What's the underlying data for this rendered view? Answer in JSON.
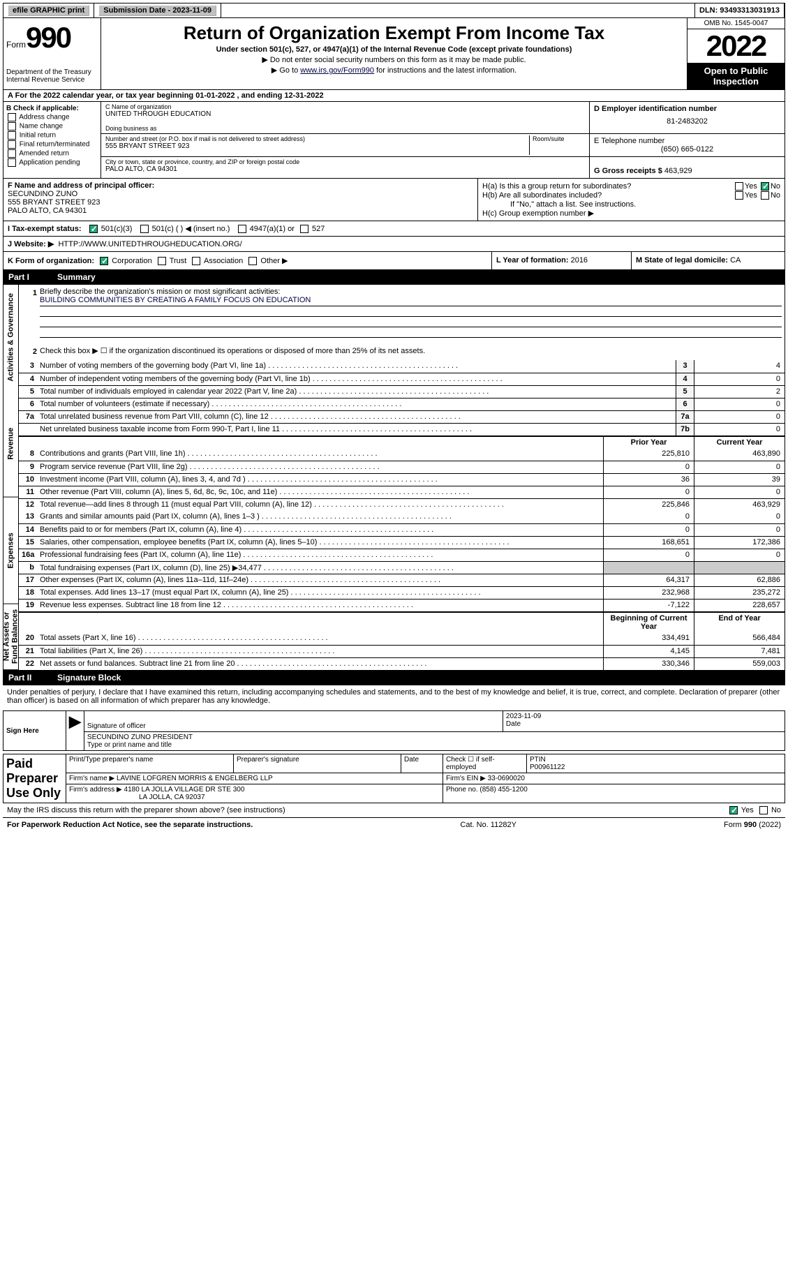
{
  "header": {
    "efile": "efile GRAPHIC print",
    "submission_label": "Submission Date - 2023-11-09",
    "dln": "DLN: 93493313031913"
  },
  "form_head": {
    "form_small": "Form",
    "form_num": "990",
    "title": "Return of Organization Exempt From Income Tax",
    "subtitle": "Under section 501(c), 527, or 4947(a)(1) of the Internal Revenue Code (except private foundations)",
    "note1": "▶ Do not enter social security numbers on this form as it may be made public.",
    "note2_pre": "▶ Go to ",
    "note2_link": "www.irs.gov/Form990",
    "note2_post": " for instructions and the latest information.",
    "dept": "Department of the Treasury",
    "irs": "Internal Revenue Service",
    "omb": "OMB No. 1545-0047",
    "year": "2022",
    "open": "Open to Public Inspection"
  },
  "row_a": "A For the 2022 calendar year, or tax year beginning 01-01-2022   , and ending 12-31-2022",
  "section_b": {
    "header": "B Check if applicable:",
    "items": [
      "Address change",
      "Name change",
      "Initial return",
      "Final return/terminated",
      "Amended return",
      "Application pending"
    ]
  },
  "section_c": {
    "name_lbl": "C Name of organization",
    "name": "UNITED THROUGH EDUCATION",
    "dba_lbl": "Doing business as",
    "addr_lbl": "Number and street (or P.O. box if mail is not delivered to street address)",
    "room_lbl": "Room/suite",
    "addr": "555 BRYANT STREET 923",
    "city_lbl": "City or town, state or province, country, and ZIP or foreign postal code",
    "city": "PALO ALTO, CA  94301"
  },
  "section_d": {
    "ein_lbl": "D Employer identification number",
    "ein": "81-2483202",
    "tel_lbl": "E Telephone number",
    "tel": "(650) 665-0122",
    "gross_lbl": "G Gross receipts $",
    "gross": "463,929"
  },
  "section_f": {
    "lbl": "F Name and address of principal officer:",
    "name": "SECUNDINO ZUNO",
    "addr1": "555 BRYANT STREET 923",
    "addr2": "PALO ALTO, CA  94301"
  },
  "section_h": {
    "ha": "H(a)  Is this a group return for subordinates?",
    "hb": "H(b)  Are all subordinates included?",
    "hb_note": "If \"No,\" attach a list. See instructions.",
    "hc": "H(c)  Group exemption number ▶",
    "yes": "Yes",
    "no": "No"
  },
  "row_i": {
    "lbl": "I   Tax-exempt status:",
    "o1": "501(c)(3)",
    "o2": "501(c) (  ) ◀ (insert no.)",
    "o3": "4947(a)(1) or",
    "o4": "527"
  },
  "row_j": {
    "lbl": "J   Website: ▶",
    "val": "HTTP://WWW.UNITEDTHROUGHEDUCATION.ORG/"
  },
  "row_k": {
    "lbl": "K Form of organization:",
    "o1": "Corporation",
    "o2": "Trust",
    "o3": "Association",
    "o4": "Other ▶"
  },
  "row_l": {
    "lbl": "L Year of formation:",
    "val": "2016"
  },
  "row_m": {
    "lbl": "M State of legal domicile:",
    "val": "CA"
  },
  "part1": {
    "hdr_num": "Part I",
    "hdr_title": "Summary",
    "l1_lbl": "Briefly describe the organization's mission or most significant activities:",
    "l1_val": "BUILDING COMMUNITIES BY CREATING A FAMILY FOCUS ON EDUCATION",
    "l2_lbl": "Check this box ▶ ☐ if the organization discontinued its operations or disposed of more than 25% of its net assets.",
    "prior_hdr": "Prior Year",
    "curr_hdr": "Current Year",
    "begin_hdr": "Beginning of Current Year",
    "end_hdr": "End of Year",
    "lines_gov": [
      {
        "n": "3",
        "d": "Number of voting members of the governing body (Part VI, line 1a)",
        "nc": "3",
        "v": "4"
      },
      {
        "n": "4",
        "d": "Number of independent voting members of the governing body (Part VI, line 1b)",
        "nc": "4",
        "v": "0"
      },
      {
        "n": "5",
        "d": "Total number of individuals employed in calendar year 2022 (Part V, line 2a)",
        "nc": "5",
        "v": "2"
      },
      {
        "n": "6",
        "d": "Total number of volunteers (estimate if necessary)",
        "nc": "6",
        "v": "0"
      },
      {
        "n": "7a",
        "d": "Total unrelated business revenue from Part VIII, column (C), line 12",
        "nc": "7a",
        "v": "0"
      },
      {
        "n": "",
        "d": "Net unrelated business taxable income from Form 990-T, Part I, line 11",
        "nc": "7b",
        "v": "0"
      }
    ],
    "lines_rev": [
      {
        "n": "8",
        "d": "Contributions and grants (Part VIII, line 1h)",
        "p": "225,810",
        "c": "463,890"
      },
      {
        "n": "9",
        "d": "Program service revenue (Part VIII, line 2g)",
        "p": "0",
        "c": "0"
      },
      {
        "n": "10",
        "d": "Investment income (Part VIII, column (A), lines 3, 4, and 7d )",
        "p": "36",
        "c": "39"
      },
      {
        "n": "11",
        "d": "Other revenue (Part VIII, column (A), lines 5, 6d, 8c, 9c, 10c, and 11e)",
        "p": "0",
        "c": "0"
      },
      {
        "n": "12",
        "d": "Total revenue—add lines 8 through 11 (must equal Part VIII, column (A), line 12)",
        "p": "225,846",
        "c": "463,929"
      }
    ],
    "lines_exp": [
      {
        "n": "13",
        "d": "Grants and similar amounts paid (Part IX, column (A), lines 1–3 )",
        "p": "0",
        "c": "0"
      },
      {
        "n": "14",
        "d": "Benefits paid to or for members (Part IX, column (A), line 4)",
        "p": "0",
        "c": "0"
      },
      {
        "n": "15",
        "d": "Salaries, other compensation, employee benefits (Part IX, column (A), lines 5–10)",
        "p": "168,651",
        "c": "172,386"
      },
      {
        "n": "16a",
        "d": "Professional fundraising fees (Part IX, column (A), line 11e)",
        "p": "0",
        "c": "0"
      },
      {
        "n": "b",
        "d": "Total fundraising expenses (Part IX, column (D), line 25) ▶34,477",
        "p": "",
        "c": ""
      },
      {
        "n": "17",
        "d": "Other expenses (Part IX, column (A), lines 11a–11d, 11f–24e)",
        "p": "64,317",
        "c": "62,886"
      },
      {
        "n": "18",
        "d": "Total expenses. Add lines 13–17 (must equal Part IX, column (A), line 25)",
        "p": "232,968",
        "c": "235,272"
      },
      {
        "n": "19",
        "d": "Revenue less expenses. Subtract line 18 from line 12",
        "p": "-7,122",
        "c": "228,657"
      }
    ],
    "lines_net": [
      {
        "n": "20",
        "d": "Total assets (Part X, line 16)",
        "p": "334,491",
        "c": "566,484"
      },
      {
        "n": "21",
        "d": "Total liabilities (Part X, line 26)",
        "p": "4,145",
        "c": "7,481"
      },
      {
        "n": "22",
        "d": "Net assets or fund balances. Subtract line 21 from line 20",
        "p": "330,346",
        "c": "559,003"
      }
    ]
  },
  "part2": {
    "hdr_num": "Part II",
    "hdr_title": "Signature Block",
    "decl": "Under penalties of perjury, I declare that I have examined this return, including accompanying schedules and statements, and to the best of my knowledge and belief, it is true, correct, and complete. Declaration of preparer (other than officer) is based on all information of which preparer has any knowledge.",
    "sign_here": "Sign Here",
    "sig_officer": "Signature of officer",
    "date": "Date",
    "date_val": "2023-11-09",
    "officer_name": "SECUNDINO ZUNO  PRESIDENT",
    "type_name": "Type or print name and title",
    "paid_prep": "Paid Preparer Use Only",
    "prep_name_lbl": "Print/Type preparer's name",
    "prep_sig_lbl": "Preparer's signature",
    "self_emp": "Check ☐ if self-employed",
    "ptin_lbl": "PTIN",
    "ptin": "P00961122",
    "firm_name_lbl": "Firm's name   ▶",
    "firm_name": "LAVINE LOFGREN MORRIS & ENGELBERG LLP",
    "firm_ein_lbl": "Firm's EIN ▶",
    "firm_ein": "33-0690020",
    "firm_addr_lbl": "Firm's address ▶",
    "firm_addr1": "4180 LA JOLLA VILLAGE DR STE 300",
    "firm_addr2": "LA JOLLA, CA  92037",
    "phone_lbl": "Phone no.",
    "phone": "(858) 455-1200",
    "discuss": "May the IRS discuss this return with the preparer shown above? (see instructions)",
    "yes": "Yes",
    "no": "No"
  },
  "footer": {
    "l": "For Paperwork Reduction Act Notice, see the separate instructions.",
    "c": "Cat. No. 11282Y",
    "r": "Form 990 (2022)"
  }
}
